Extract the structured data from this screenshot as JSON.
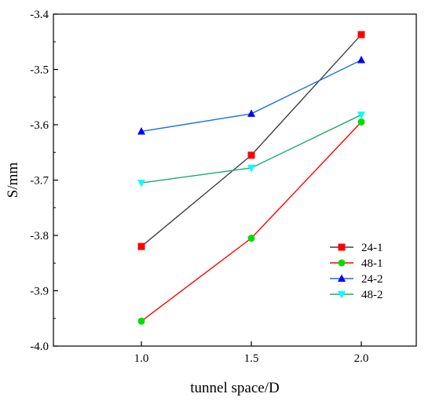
{
  "chart_data": {
    "type": "line",
    "xlabel": "tunnel space/D",
    "ylabel": "S/mm",
    "x": [
      1.0,
      1.5,
      2.0
    ],
    "x_ticks": [
      "1.0",
      "1.5",
      "2.0"
    ],
    "y_ticks": [
      "-3.4",
      "-3.5",
      "-3.6",
      "-3.7",
      "-3.8",
      "-3.9",
      "-4.0"
    ],
    "y_tick_values": [
      -3.4,
      -3.5,
      -3.6,
      -3.7,
      -3.8,
      -3.9,
      -4.0
    ],
    "xlim": [
      0.6,
      2.25
    ],
    "ylim": [
      -4.0,
      -3.4
    ],
    "grid": false,
    "legend_position": "bottom-right",
    "series": [
      {
        "name": "24-1",
        "values": [
          -3.82,
          -3.655,
          -3.437
        ],
        "line_color": "#404040",
        "marker_color": "#ff0000",
        "marker": "square"
      },
      {
        "name": "48-1",
        "values": [
          -3.955,
          -3.805,
          -3.595
        ],
        "line_color": "#ff0000",
        "marker_color": "#00dd00",
        "marker": "circle"
      },
      {
        "name": "24-2",
        "values": [
          -3.612,
          -3.58,
          -3.483
        ],
        "line_color": "#1a6fdf",
        "marker_color": "#0000ff",
        "marker": "triangle-up"
      },
      {
        "name": "48-2",
        "values": [
          -3.705,
          -3.678,
          -3.582
        ],
        "line_color": "#1aaa6f",
        "marker_color": "#00ffff",
        "marker": "triangle-down"
      }
    ]
  }
}
